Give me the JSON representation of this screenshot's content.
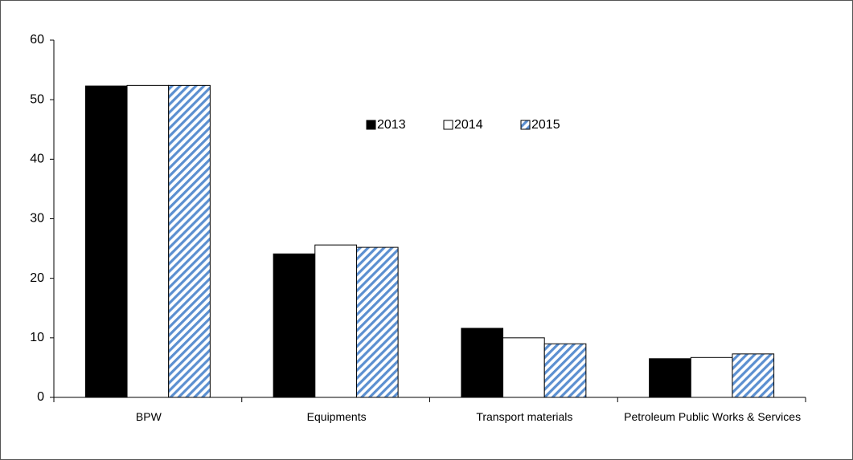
{
  "chart_data": {
    "type": "bar",
    "categories": [
      "BPW",
      "Equipments",
      "Transport materials",
      "Petroleum Public Works & Services"
    ],
    "series": [
      {
        "name": "2013",
        "color": "#000000",
        "values": [
          52.3,
          24.1,
          11.6,
          6.5
        ]
      },
      {
        "name": "2014",
        "color": "#ffffff",
        "values": [
          52.4,
          25.6,
          10.0,
          6.7
        ]
      },
      {
        "name": "2015",
        "color": "#5b8fd0",
        "pattern": "diagonal",
        "values": [
          52.4,
          25.2,
          9.0,
          7.3
        ]
      }
    ],
    "ylim": [
      0,
      60
    ],
    "yticks": [
      0,
      10,
      20,
      30,
      40,
      50,
      60
    ],
    "grid": false,
    "legend": "top"
  }
}
